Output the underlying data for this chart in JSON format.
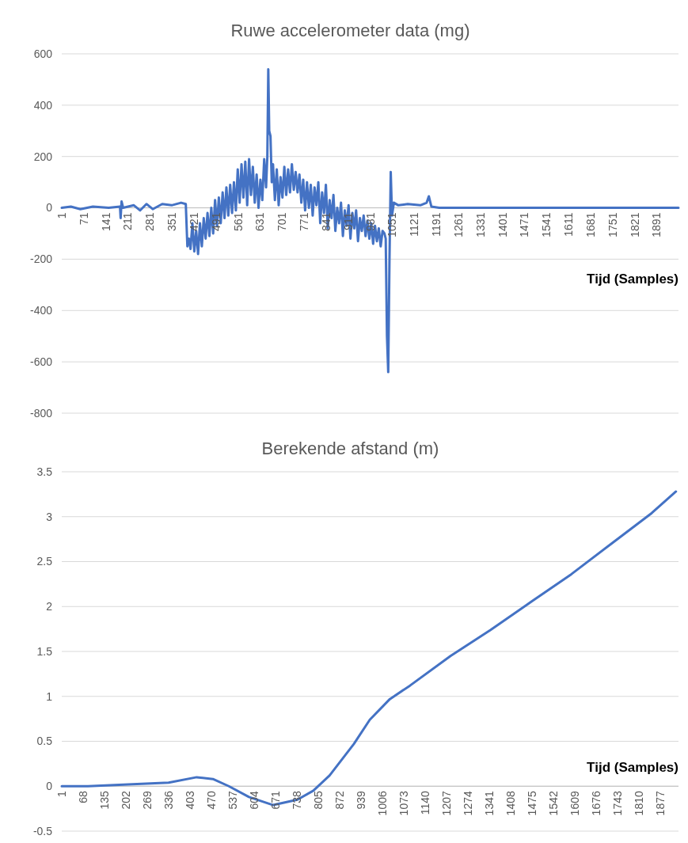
{
  "chart_data": [
    {
      "type": "line",
      "title": "Ruwe accelerometer data (mg)",
      "xlabel": "Tijd (Samples)",
      "xlim": [
        1,
        1960
      ],
      "xticks": [
        1,
        71,
        141,
        211,
        281,
        351,
        421,
        491,
        561,
        631,
        701,
        771,
        841,
        911,
        981,
        1051,
        1121,
        1191,
        1261,
        1331,
        1401,
        1471,
        1541,
        1611,
        1681,
        1751,
        1821,
        1891
      ],
      "ylim": [
        -800,
        600
      ],
      "yticks": [
        -800,
        -600,
        -400,
        -200,
        0,
        200,
        400,
        600
      ],
      "grid": "y",
      "series": [
        {
          "color": "#4472c4",
          "x": [
            1,
            30,
            60,
            100,
            150,
            186,
            188,
            191,
            196,
            230,
            250,
            270,
            290,
            320,
            350,
            380,
            395,
            400,
            405,
            410,
            416,
            422,
            428,
            434,
            440,
            446,
            452,
            458,
            464,
            470,
            476,
            482,
            488,
            494,
            500,
            506,
            512,
            518,
            524,
            530,
            536,
            542,
            548,
            554,
            560,
            566,
            572,
            578,
            584,
            590,
            596,
            602,
            608,
            614,
            620,
            626,
            632,
            638,
            644,
            650,
            654,
            657,
            660,
            664,
            668,
            672,
            678,
            684,
            690,
            696,
            702,
            708,
            714,
            720,
            726,
            732,
            738,
            744,
            750,
            756,
            762,
            768,
            774,
            780,
            786,
            792,
            798,
            804,
            810,
            816,
            822,
            828,
            834,
            840,
            846,
            852,
            858,
            864,
            870,
            876,
            882,
            888,
            894,
            900,
            906,
            912,
            918,
            924,
            930,
            936,
            942,
            948,
            954,
            960,
            966,
            972,
            978,
            984,
            990,
            996,
            1002,
            1008,
            1014,
            1020,
            1026,
            1030,
            1034,
            1038,
            1042,
            1046,
            1050,
            1056,
            1070,
            1100,
            1140,
            1160,
            1167,
            1175,
            1200,
            1500,
            1960
          ],
          "values": [
            0,
            5,
            -5,
            5,
            0,
            5,
            -40,
            25,
            0,
            10,
            -10,
            15,
            -5,
            15,
            10,
            20,
            15,
            -150,
            -120,
            -160,
            -60,
            -170,
            -90,
            -180,
            -60,
            -150,
            -40,
            -120,
            -20,
            -110,
            0,
            -100,
            30,
            -70,
            40,
            -60,
            60,
            -40,
            80,
            -30,
            90,
            -20,
            100,
            -10,
            150,
            20,
            170,
            40,
            180,
            10,
            190,
            50,
            160,
            20,
            130,
            0,
            110,
            30,
            190,
            80,
            200,
            540,
            300,
            280,
            100,
            170,
            30,
            150,
            10,
            120,
            40,
            160,
            50,
            150,
            60,
            170,
            70,
            140,
            60,
            130,
            20,
            110,
            -10,
            100,
            0,
            90,
            -30,
            80,
            10,
            100,
            -60,
            60,
            -20,
            90,
            -80,
            30,
            -40,
            50,
            -90,
            0,
            -60,
            20,
            -110,
            -10,
            -70,
            10,
            -120,
            -20,
            -80,
            -10,
            -130,
            -40,
            -90,
            -30,
            -110,
            -50,
            -120,
            -60,
            -140,
            -70,
            -130,
            -80,
            -150,
            -90,
            -100,
            -120,
            -500,
            -640,
            -200,
            140,
            -30,
            20,
            10,
            15,
            10,
            20,
            45,
            5,
            0,
            0,
            0
          ]
        }
      ]
    },
    {
      "type": "line",
      "title": "Berekende afstand (m)",
      "xlabel": "Tijd (Samples)",
      "xlim": [
        1,
        1935
      ],
      "xticks": [
        1,
        68,
        135,
        202,
        269,
        336,
        403,
        470,
        537,
        604,
        671,
        738,
        805,
        872,
        939,
        1006,
        1073,
        1140,
        1207,
        1274,
        1341,
        1408,
        1475,
        1542,
        1609,
        1676,
        1743,
        1810,
        1877
      ],
      "ylim": [
        -0.5,
        3.5
      ],
      "yticks": [
        -0.5,
        0,
        0.5,
        1,
        1.5,
        2,
        2.5,
        3,
        3.5
      ],
      "grid": "y",
      "series": [
        {
          "color": "#4472c4",
          "x": [
            1,
            83,
            209,
            336,
            424,
            475,
            525,
            588,
            664,
            740,
            790,
            841,
            917,
            967,
            1030,
            1093,
            1220,
            1346,
            1472,
            1599,
            1725,
            1851,
            1927
          ],
          "values": [
            0,
            0,
            0.02,
            0.04,
            0.1,
            0.08,
            0,
            -0.12,
            -0.21,
            -0.15,
            -0.05,
            0.12,
            0.47,
            0.74,
            0.97,
            1.12,
            1.45,
            1.74,
            2.05,
            2.36,
            2.7,
            3.04,
            3.28
          ]
        }
      ]
    }
  ]
}
